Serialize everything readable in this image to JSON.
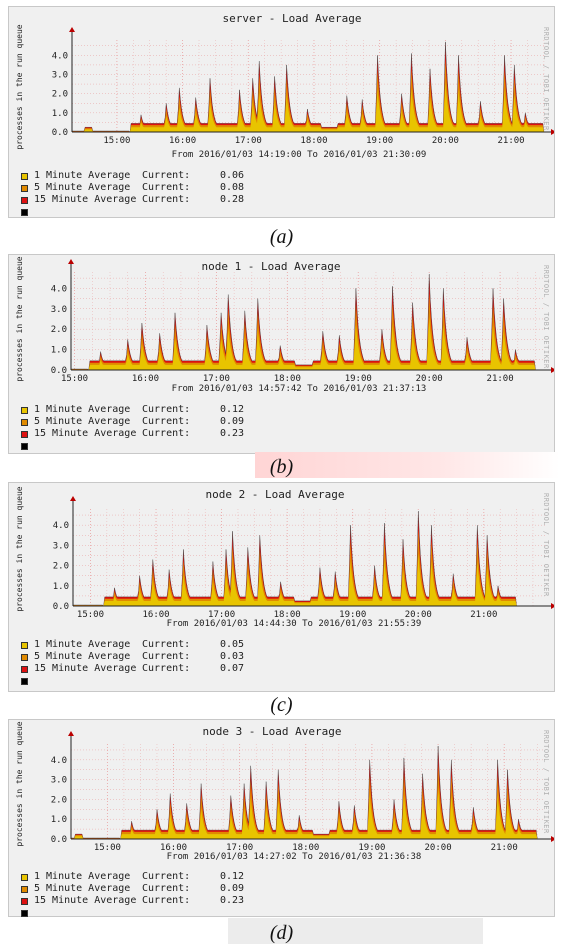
{
  "colors": {
    "one": "#e8c400",
    "five": "#e08a00",
    "fifteen": "#dd1111",
    "grid": "#e9a0a0",
    "bg": "#f0f0f0"
  },
  "ylabel": "processes in the run queue",
  "legend_current": "Current:",
  "watermark": "RRDTOOL / TOBI OETIKER",
  "chart_data": [
    {
      "type": "area",
      "title": "server - Load Average",
      "ylabel": "processes in the run queue",
      "period": "From 2016/01/03 14:19:00 To 2016/01/03 21:30:09",
      "caption": "(a)",
      "x_ticks": [
        "15:00",
        "16:00",
        "17:00",
        "18:00",
        "19:00",
        "20:00",
        "21:00"
      ],
      "y_ticks": [
        "0.0",
        "1.0",
        "2.0",
        "3.0",
        "4.0"
      ],
      "ylim": [
        0,
        4.8
      ],
      "xlim_minutes": [
        859,
        1291
      ],
      "grid": true,
      "series": [
        {
          "name": "1 Minute Average",
          "current": "0.06"
        },
        {
          "name": "5 Minute Average",
          "current": "0.08"
        },
        {
          "name": "15 Minute Average",
          "current": "0.28"
        }
      ]
    },
    {
      "type": "area",
      "title": "node 1 - Load Average",
      "ylabel": "processes in the run queue",
      "period": "From 2016/01/03 14:57:42 To 2016/01/03 21:37:13",
      "caption": "(b)",
      "x_ticks": [
        "15:00",
        "16:00",
        "17:00",
        "18:00",
        "19:00",
        "20:00",
        "21:00"
      ],
      "y_ticks": [
        "0.0",
        "1.0",
        "2.0",
        "3.0",
        "4.0"
      ],
      "ylim": [
        0,
        4.8
      ],
      "xlim_minutes": [
        897,
        1298
      ],
      "grid": true,
      "series": [
        {
          "name": "1 Minute Average",
          "current": "0.12"
        },
        {
          "name": "5 Minute Average",
          "current": "0.09"
        },
        {
          "name": "15 Minute Average",
          "current": "0.23"
        }
      ]
    },
    {
      "type": "area",
      "title": "node 2 - Load Average",
      "ylabel": "processes in the run queue",
      "period": "From 2016/01/03 14:44:30 To 2016/01/03 21:55:39",
      "caption": "(c)",
      "x_ticks": [
        "15:00",
        "16:00",
        "17:00",
        "18:00",
        "19:00",
        "20:00",
        "21:00"
      ],
      "y_ticks": [
        "0.0",
        "1.0",
        "2.0",
        "3.0",
        "4.0"
      ],
      "ylim": [
        0,
        4.8
      ],
      "xlim_minutes": [
        884,
        1316
      ],
      "grid": true,
      "series": [
        {
          "name": "1 Minute Average",
          "current": "0.05"
        },
        {
          "name": "5 Minute Average",
          "current": "0.03"
        },
        {
          "name": "15 Minute Average",
          "current": "0.07"
        }
      ]
    },
    {
      "type": "area",
      "title": "node 3 - Load Average",
      "ylabel": "processes in the run queue",
      "period": "From 2016/01/03 14:27:02 To 2016/01/03 21:36:38",
      "caption": "(d)",
      "x_ticks": [
        "15:00",
        "16:00",
        "17:00",
        "18:00",
        "19:00",
        "20:00",
        "21:00"
      ],
      "y_ticks": [
        "0.0",
        "1.0",
        "2.0",
        "3.0",
        "4.0"
      ],
      "ylim": [
        0,
        4.8
      ],
      "xlim_minutes": [
        867,
        1297
      ],
      "grid": true,
      "series": [
        {
          "name": "1 Minute Average",
          "current": "0.12"
        },
        {
          "name": "5 Minute Average",
          "current": "0.09"
        },
        {
          "name": "15 Minute Average",
          "current": "0.23"
        }
      ]
    }
  ]
}
